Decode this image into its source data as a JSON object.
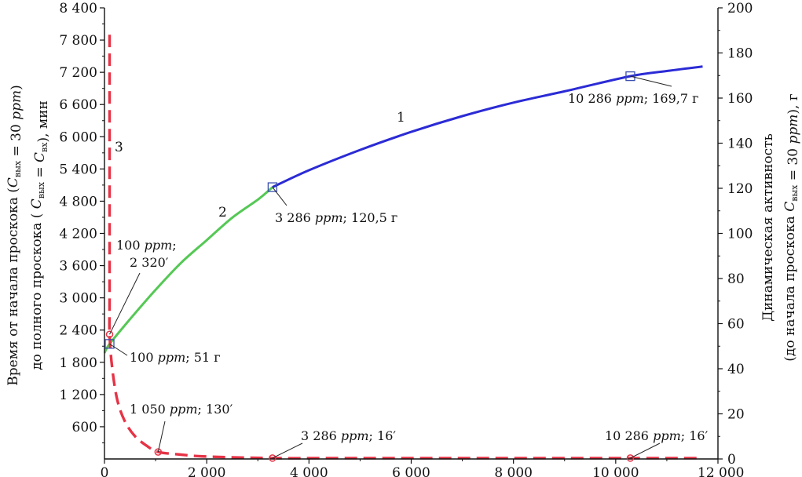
{
  "chart_data": {
    "type": "line",
    "x_axis": {
      "range": [
        0,
        12000
      ],
      "ticks": [
        0,
        2000,
        4000,
        6000,
        8000,
        10000,
        12000
      ],
      "tick_labels": [
        "0",
        "2 000",
        "4 000",
        "6 000",
        "8 000",
        "10 000",
        "12 000"
      ]
    },
    "y_left": {
      "range": [
        0,
        8400
      ],
      "ticks": [
        600,
        1200,
        1800,
        2400,
        3000,
        3600,
        4200,
        4800,
        5400,
        6000,
        6600,
        7200,
        7800,
        8400
      ],
      "tick_labels": [
        "600",
        "1 200",
        "1 800",
        "2 400",
        "3 000",
        "3 600",
        "4 200",
        "4 800",
        "5 400",
        "6 000",
        "6 600",
        "7 200",
        "7 800",
        "8 400"
      ],
      "label_line1": "Время от начала проскока (C_вых = 30 ppm)",
      "label_line2": "до полного проскока ( C_вых = C_вх), мин"
    },
    "y_right": {
      "range": [
        0,
        200
      ],
      "ticks": [
        0,
        20,
        40,
        60,
        80,
        100,
        120,
        140,
        160,
        180,
        200
      ],
      "tick_labels": [
        "0",
        "20",
        "40",
        "60",
        "80",
        "100",
        "120",
        "140",
        "160",
        "180",
        "200"
      ],
      "label_line1": "Динамическая активность",
      "label_line2": "(до начала проскока C_вых = 30 ppm), г"
    },
    "grid": false,
    "series": [
      {
        "id": "curve-1",
        "label": "1",
        "axis": "right",
        "color": "#2b2bd6",
        "style": "solid",
        "points": [
          [
            3286,
            120.5
          ],
          [
            4000,
            128
          ],
          [
            5000,
            137
          ],
          [
            6000,
            145
          ],
          [
            7000,
            152
          ],
          [
            8000,
            158
          ],
          [
            9000,
            163
          ],
          [
            10286,
            169.7
          ],
          [
            11000,
            172
          ],
          [
            11700,
            174
          ]
        ]
      },
      {
        "id": "curve-2",
        "label": "2",
        "axis": "right",
        "color": "#55c855",
        "style": "solid",
        "points": [
          [
            0,
            47
          ],
          [
            100,
            51
          ],
          [
            500,
            62
          ],
          [
            1000,
            75
          ],
          [
            1500,
            87
          ],
          [
            2000,
            97
          ],
          [
            2500,
            107
          ],
          [
            3000,
            115
          ],
          [
            3286,
            120.5
          ]
        ]
      },
      {
        "id": "curve-3",
        "label": "3",
        "axis": "left",
        "color": "#e63346",
        "style": "dashed",
        "points": [
          [
            100,
            7900
          ],
          [
            100,
            6000
          ],
          [
            100,
            4000
          ],
          [
            100,
            2900
          ],
          [
            100,
            2320
          ],
          [
            150,
            1700
          ],
          [
            250,
            1100
          ],
          [
            400,
            700
          ],
          [
            600,
            420
          ],
          [
            850,
            230
          ],
          [
            1050,
            130
          ],
          [
            1500,
            80
          ],
          [
            2000,
            45
          ],
          [
            3286,
            16
          ],
          [
            5000,
            16
          ],
          [
            10286,
            16
          ],
          [
            11700,
            16
          ]
        ]
      }
    ],
    "markers": [
      {
        "series": "curve-2",
        "x": 100,
        "y": 51,
        "shape": "square"
      },
      {
        "series": "curve-1",
        "x": 3286,
        "y": 120.5,
        "shape": "square"
      },
      {
        "series": "curve-1",
        "x": 10286,
        "y": 169.7,
        "shape": "square"
      },
      {
        "series": "curve-3",
        "x": 100,
        "y": 2320,
        "shape": "circle"
      },
      {
        "series": "curve-3",
        "x": 1050,
        "y": 130,
        "shape": "circle"
      },
      {
        "series": "curve-3",
        "x": 3286,
        "y": 16,
        "shape": "circle"
      },
      {
        "series": "curve-3",
        "x": 10286,
        "y": 16,
        "shape": "circle"
      }
    ],
    "annotations": [
      {
        "text": "10 286 ppm; 169,7 г"
      },
      {
        "text": "3 286 ppm; 120,5 г"
      },
      {
        "text": "100 ppm; 51 г"
      },
      {
        "text": "100 ppm;"
      },
      {
        "text": "2 320′"
      },
      {
        "text": "1 050 ppm; 130′"
      },
      {
        "text": "3 286 ppm; 16′"
      },
      {
        "text": "10 286 ppm; 16′"
      }
    ]
  }
}
